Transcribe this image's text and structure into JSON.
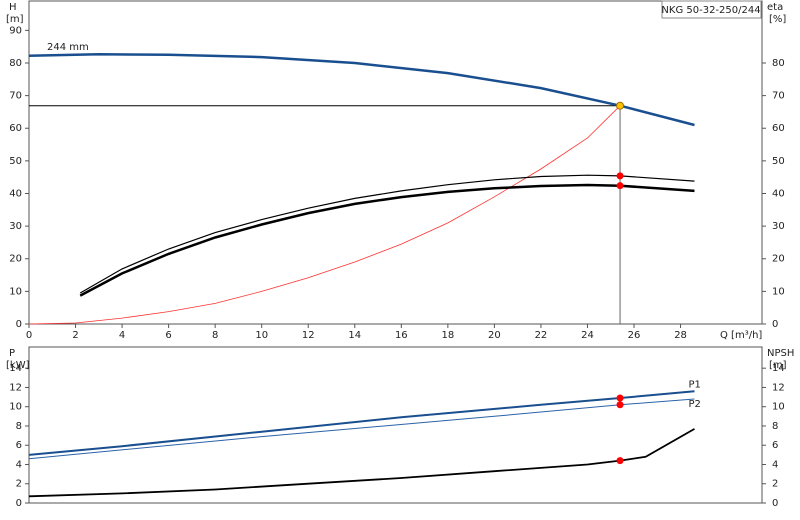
{
  "chart_data": [
    {
      "type": "line",
      "title": "NKG 50-32-250/244",
      "x_label": "Q [m³/h]",
      "y_label": "H",
      "y_unit": "[m]",
      "y2_label": "eta",
      "y2_unit": "[%]",
      "annotation": "244 mm",
      "xlim": [
        0,
        31.5
      ],
      "xticks": [
        0,
        2,
        4,
        6,
        8,
        10,
        12,
        14,
        16,
        18,
        20,
        22,
        24,
        26,
        28
      ],
      "ylim": [
        0,
        99
      ],
      "yticks": [
        0,
        10,
        20,
        30,
        40,
        50,
        60,
        70,
        80,
        90
      ],
      "y2lim": [
        0,
        99
      ],
      "y2ticks": [
        0,
        10,
        20,
        30,
        40,
        50,
        60,
        70,
        80
      ],
      "series": [
        {
          "color": "#1a4f8f",
          "line_width": 2.5,
          "axis": "y",
          "x": [
            0,
            3,
            6,
            10,
            14,
            18,
            22,
            25.4,
            28.6
          ],
          "values": [
            82.2,
            82.7,
            82.5,
            81.8,
            80,
            76.9,
            72.3,
            66.9,
            61
          ]
        },
        {
          "color": "#ff3030",
          "line_width": 0.8,
          "axis": "y2",
          "x": [
            0,
            2,
            4,
            6,
            8,
            10,
            12,
            14,
            16,
            18,
            20,
            22,
            24,
            25.4
          ],
          "values": [
            0,
            0.3,
            1.8,
            3.8,
            6.3,
            10,
            14.2,
            19,
            24.5,
            31,
            39,
            47.5,
            57,
            66.9
          ]
        },
        {
          "color": "#000000",
          "line_width": 1.2,
          "axis": "y2",
          "x": [
            2.2,
            4,
            6,
            8,
            10,
            12,
            14,
            16,
            18,
            20,
            22,
            24,
            25.4,
            28.6
          ],
          "values": [
            9.5,
            16.9,
            23,
            28,
            32,
            35.5,
            38.5,
            40.8,
            42.7,
            44.2,
            45.2,
            45.6,
            45.4,
            43.8
          ]
        },
        {
          "color": "#000000",
          "line_width": 2.5,
          "axis": "y2",
          "x": [
            2.2,
            4,
            6,
            8,
            10,
            12,
            14,
            16,
            18,
            20,
            22,
            24,
            25.4,
            28.6
          ],
          "values": [
            8.7,
            15.5,
            21.5,
            26.5,
            30.5,
            34,
            36.8,
            38.9,
            40.5,
            41.6,
            42.3,
            42.6,
            42.4,
            40.8
          ]
        }
      ],
      "points": [
        {
          "x": 25.4,
          "y": 66.9,
          "axis": "y",
          "color": "#ffc000",
          "guides": true
        },
        {
          "x": 25.4,
          "y": 45.4,
          "axis": "y2",
          "color": "#ff0000"
        },
        {
          "x": 25.4,
          "y": 42.4,
          "axis": "y2",
          "color": "#ff0000"
        }
      ]
    },
    {
      "type": "line",
      "y_label": "P",
      "y_unit": "[kW]",
      "y2_label": "NPSH",
      "y2_unit": "[m]",
      "xlim": [
        0,
        31.5
      ],
      "ylim": [
        0,
        16.2
      ],
      "yticks": [
        0,
        2,
        4,
        6,
        8,
        10,
        12,
        14
      ],
      "y2lim": [
        0,
        16.2
      ],
      "y2ticks": [
        0,
        2,
        4,
        6,
        8,
        10,
        12,
        14
      ],
      "series": [
        {
          "name": "P1",
          "color": "#1a4f8f",
          "line_width": 2,
          "axis": "y",
          "x": [
            0,
            4,
            10,
            16,
            22,
            25.4,
            28.6
          ],
          "values": [
            5,
            5.9,
            7.4,
            8.9,
            10.2,
            10.9,
            11.6
          ]
        },
        {
          "name": "P2",
          "color": "#2a62a8",
          "line_width": 1,
          "axis": "y",
          "x": [
            0,
            10,
            20,
            25.4,
            28.6
          ],
          "values": [
            4.6,
            6.9,
            9,
            10.2,
            10.8
          ]
        },
        {
          "color": "#000000",
          "line_width": 1.8,
          "axis": "y2",
          "x": [
            0,
            4,
            8,
            12,
            16,
            20,
            24,
            25.4,
            26.5,
            28.6
          ],
          "values": [
            0.7,
            1,
            1.4,
            2,
            2.6,
            3.3,
            4,
            4.4,
            4.8,
            7.7
          ]
        }
      ],
      "points": [
        {
          "x": 25.4,
          "y": 10.9,
          "axis": "y",
          "color": "#ff0000"
        },
        {
          "x": 25.4,
          "y": 10.2,
          "axis": "y",
          "color": "#ff0000"
        },
        {
          "x": 25.4,
          "y": 4.4,
          "axis": "y2",
          "color": "#ff0000"
        }
      ]
    }
  ]
}
